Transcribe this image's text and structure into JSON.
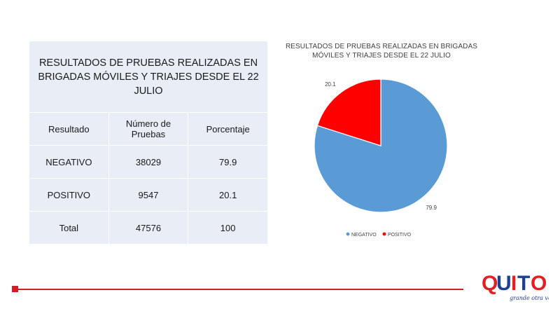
{
  "table": {
    "title": "RESULTADOS DE PRUEBAS REALIZADAS EN BRIGADAS MÓVILES Y TRIAJES DESDE EL 22 JULIO",
    "headers": [
      "Resultado",
      "Número de Pruebas",
      "Porcentaje"
    ],
    "rows": [
      [
        "NEGATIVO",
        "38029",
        "79.9"
      ],
      [
        "POSITIVO",
        "9547",
        "20.1"
      ],
      [
        "Total",
        "47576",
        "100"
      ]
    ]
  },
  "chart_data": {
    "type": "pie",
    "title": "RESULTADOS DE PRUEBAS REALIZADAS EN BRIGADAS MÓVILES Y TRIAJES DESDE EL 22 JULIO",
    "categories": [
      "NEGATIVO",
      "POSITIVO"
    ],
    "values": [
      79.9,
      20.1
    ],
    "data_labels": [
      "79.9",
      "20.1"
    ],
    "colors": [
      "#5b9bd5",
      "#ff0000"
    ],
    "legend_position": "bottom"
  },
  "logo": {
    "word": "QUITO",
    "tagline": "grande otra vez",
    "colors": [
      "#1f3f94",
      "#e31e24"
    ]
  },
  "colors": {
    "accent": "#d51c24",
    "table_bg": "#e9edf6"
  }
}
